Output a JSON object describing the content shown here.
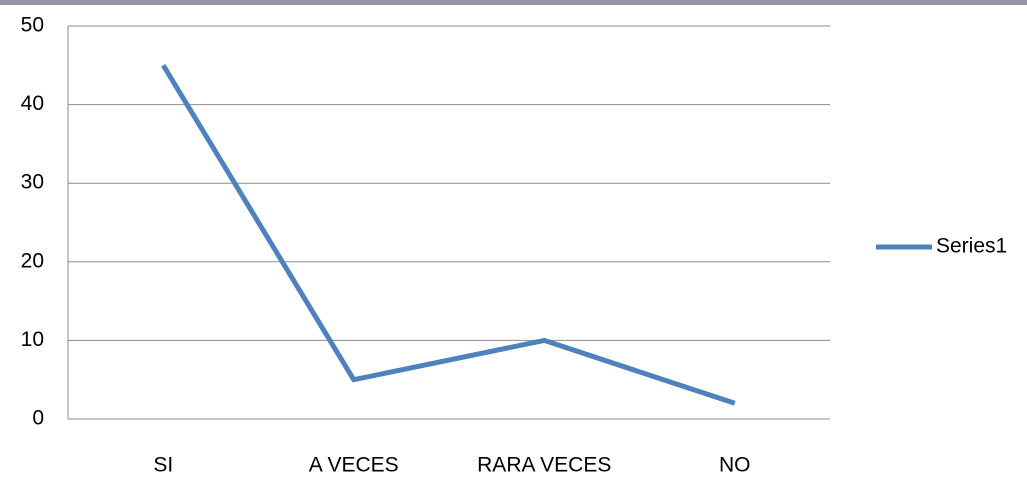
{
  "chart_data": {
    "type": "line",
    "categories": [
      "SI",
      "A VECES",
      "RARA VECES",
      "NO"
    ],
    "series": [
      {
        "name": "Series1",
        "color": "#4f81bd",
        "values": [
          45,
          5,
          10,
          2
        ]
      }
    ],
    "ylim": [
      0,
      50
    ],
    "yticks": [
      0,
      10,
      20,
      30,
      40,
      50
    ],
    "grid": true,
    "legend": "right"
  }
}
